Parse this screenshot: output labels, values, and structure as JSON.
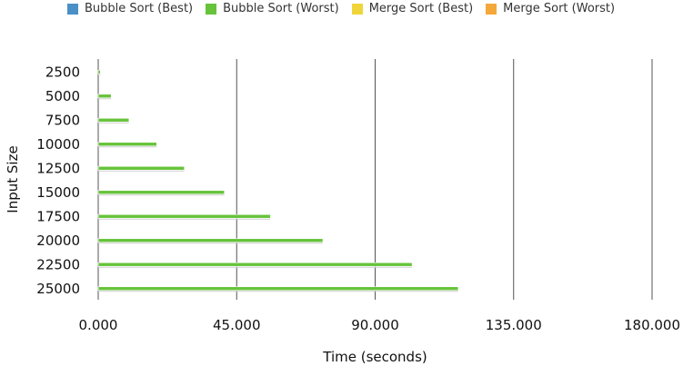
{
  "chart_data": {
    "type": "bar",
    "orientation": "horizontal",
    "categories": [
      "2500",
      "5000",
      "7500",
      "10000",
      "12500",
      "15000",
      "17500",
      "20000",
      "22500",
      "25000"
    ],
    "series": [
      {
        "name": "Bubble Sort (Best)",
        "color": "#4a90c8",
        "values": [
          0,
          0,
          0,
          0,
          0,
          0,
          0,
          0,
          0,
          0
        ]
      },
      {
        "name": "Bubble Sort (Worst)",
        "color": "#66c33a",
        "values": [
          700,
          4200,
          10000,
          19000,
          28000,
          41000,
          56000,
          73000,
          102000,
          117000
        ]
      },
      {
        "name": "Merge Sort (Best)",
        "color": "#f0d53a",
        "values": [
          0,
          0,
          0,
          0,
          0,
          0,
          0,
          0,
          0,
          0
        ]
      },
      {
        "name": "Merge Sort (Worst)",
        "color": "#f5a83a",
        "values": [
          0,
          0,
          0,
          0,
          0,
          0,
          0,
          0,
          0,
          0
        ]
      }
    ],
    "xlabel": "Time (seconds)",
    "ylabel": "Input Size",
    "xlim": [
      0,
      180000
    ],
    "xticks": [
      0,
      45000,
      90000,
      135000,
      180000
    ],
    "xtick_labels": [
      "0.000",
      "45.000",
      "90.000",
      "135.000",
      "180.000"
    ],
    "grid": true,
    "legend_position": "top"
  }
}
